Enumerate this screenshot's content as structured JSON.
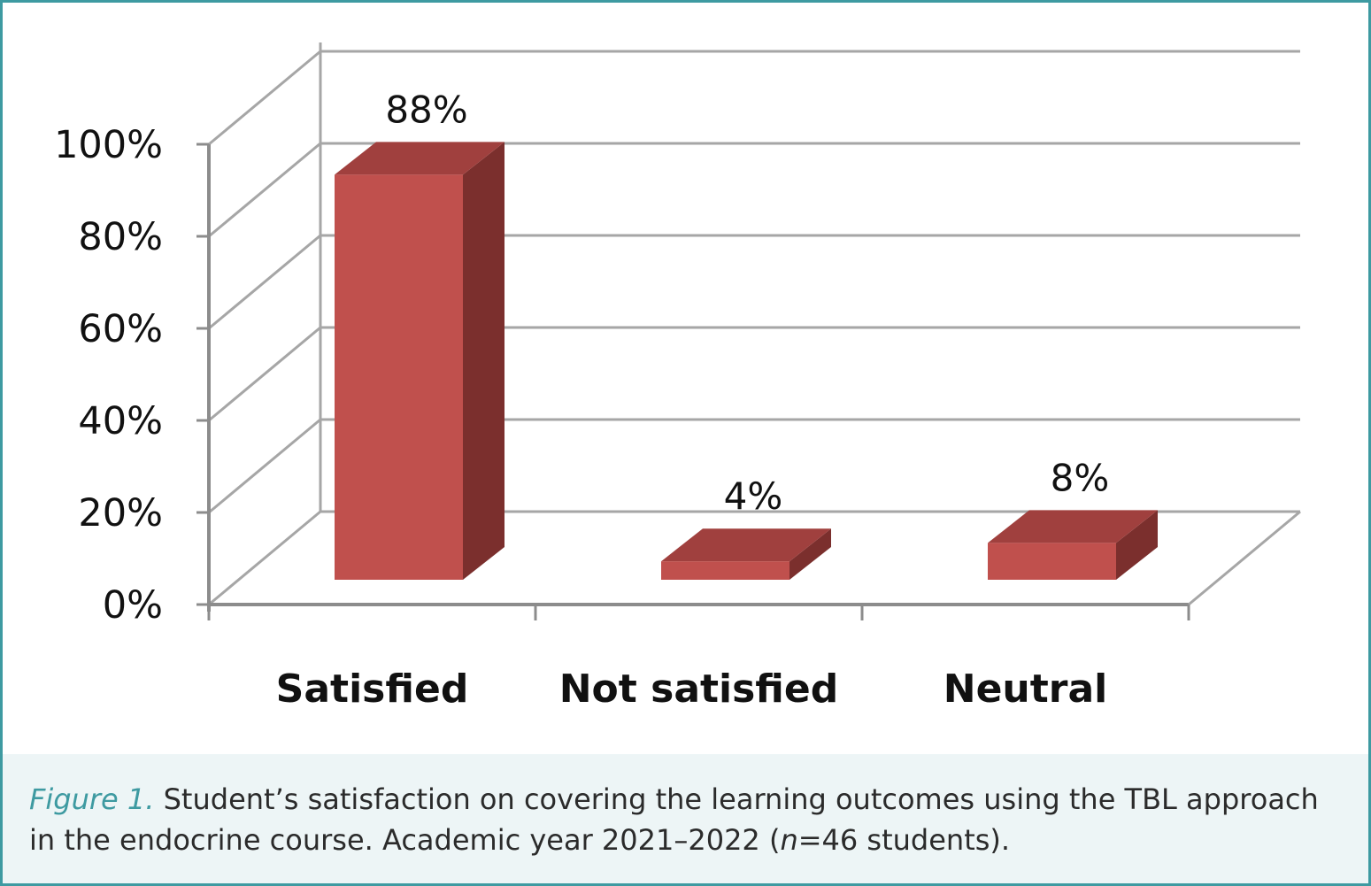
{
  "chart_data": {
    "type": "bar",
    "style": "3d-column",
    "categories": [
      "Satisfied",
      "Not satisfied",
      "Neutral"
    ],
    "values": [
      88,
      4,
      8
    ],
    "data_labels": [
      "88%",
      "4%",
      "8%"
    ],
    "ylim": [
      0,
      100
    ],
    "yticks": [
      0,
      20,
      40,
      60,
      80,
      100
    ],
    "ytick_labels": [
      "0%",
      "20%",
      "40%",
      "60%",
      "80%",
      "100%"
    ],
    "title": "",
    "xlabel": "",
    "ylabel": "",
    "grid": true,
    "colors": {
      "bar_front": "#c0504d",
      "bar_top": "#a0403e",
      "bar_side": "#7b2f2d",
      "grid": "#a6a6a6",
      "axis": "#8c8c8c"
    }
  },
  "caption": {
    "figure_label": "Figure 1.",
    "text_1": " Student’s satisfaction on covering the learning outcomes using the TBL approach in the endocrine course. Academic year 2021–2022 (",
    "n_var": "n",
    "text_2": "=46 students)."
  },
  "colors": {
    "frame_border": "#3e9aa1",
    "caption_bg": "#edf5f6"
  }
}
